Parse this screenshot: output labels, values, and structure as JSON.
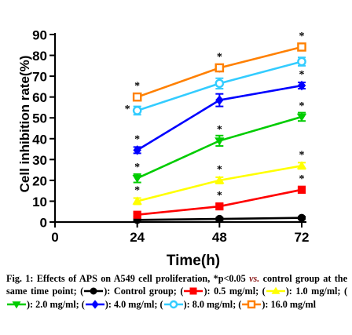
{
  "chart_data": {
    "type": "line",
    "xlabel": "Time(h)",
    "ylabel": "Cell inhibition rate(%)",
    "x": [
      0,
      24,
      48,
      72
    ],
    "x_ticks": [
      "0",
      "24",
      "48",
      "72"
    ],
    "xlim": [
      0,
      72
    ],
    "ylim": [
      0,
      90
    ],
    "y_ticks": [
      "0",
      "10",
      "20",
      "30",
      "40",
      "50",
      "60",
      "70",
      "80",
      "90"
    ],
    "grid": false,
    "significance_marker": "*",
    "series": [
      {
        "key": "control",
        "color": "#000000",
        "marker": "filled-circle",
        "x": [
          24,
          48,
          72
        ],
        "values": [
          1.0,
          1.5,
          2.0
        ],
        "errors": [
          0.6,
          0.6,
          0.6
        ],
        "sig": [
          false,
          false,
          false
        ]
      },
      {
        "key": "d05",
        "color": "#ff0000",
        "marker": "filled-square",
        "x": [
          24,
          48,
          72
        ],
        "values": [
          3.5,
          7.5,
          15.5
        ],
        "errors": [
          0.8,
          1.2,
          1.5
        ],
        "sig": [
          true,
          true,
          true
        ]
      },
      {
        "key": "d10",
        "color": "#ffff00",
        "marker": "filled-triangle-up",
        "x": [
          24,
          48,
          72
        ],
        "values": [
          10.0,
          20.0,
          27.0
        ],
        "errors": [
          1.5,
          1.5,
          1.5
        ],
        "sig": [
          true,
          true,
          true
        ]
      },
      {
        "key": "d20",
        "color": "#00cc00",
        "marker": "filled-triangle-down",
        "x": [
          24,
          48,
          72
        ],
        "values": [
          21.0,
          39.0,
          50.5
        ],
        "errors": [
          2.0,
          2.5,
          2.0
        ],
        "sig": [
          true,
          true,
          true
        ]
      },
      {
        "key": "d40",
        "color": "#0000ff",
        "marker": "filled-diamond",
        "x": [
          24,
          48,
          72
        ],
        "values": [
          34.5,
          58.5,
          65.5
        ],
        "errors": [
          1.5,
          3.0,
          1.5
        ],
        "sig": [
          true,
          true,
          true
        ]
      },
      {
        "key": "d80",
        "color": "#33ccff",
        "marker": "open-circle",
        "x": [
          24,
          48,
          72
        ],
        "values": [
          53.5,
          66.5,
          77.0
        ],
        "errors": [
          2.0,
          2.5,
          2.0
        ],
        "sig": [
          true,
          true,
          true
        ]
      },
      {
        "key": "d160",
        "color": "#ff8000",
        "marker": "open-square",
        "x": [
          24,
          48,
          72
        ],
        "values": [
          60.0,
          74.0,
          84.0
        ],
        "errors": [
          1.0,
          1.5,
          1.5
        ],
        "sig": [
          true,
          true,
          true
        ]
      }
    ]
  },
  "caption": {
    "lead": "Fig. 1: Effects of APS on A549 cell proliferation, *p<0.05 ",
    "vs": "vs.",
    "text1": " control group at the same time point; (",
    "l_control": "): Control group;",
    "l_d05": "): 0.5 mg/ml; (",
    "l_d10": "): 1.0 mg/ml; (",
    "l_d20": "): 2.0 mg/ml;",
    "l_d40": "): 4.0 mg/ml; (",
    "l_d80": "): 8.0 mg/ml; (",
    "l_d160": "): 16.0 mg/ml",
    "paren_open": "("
  }
}
